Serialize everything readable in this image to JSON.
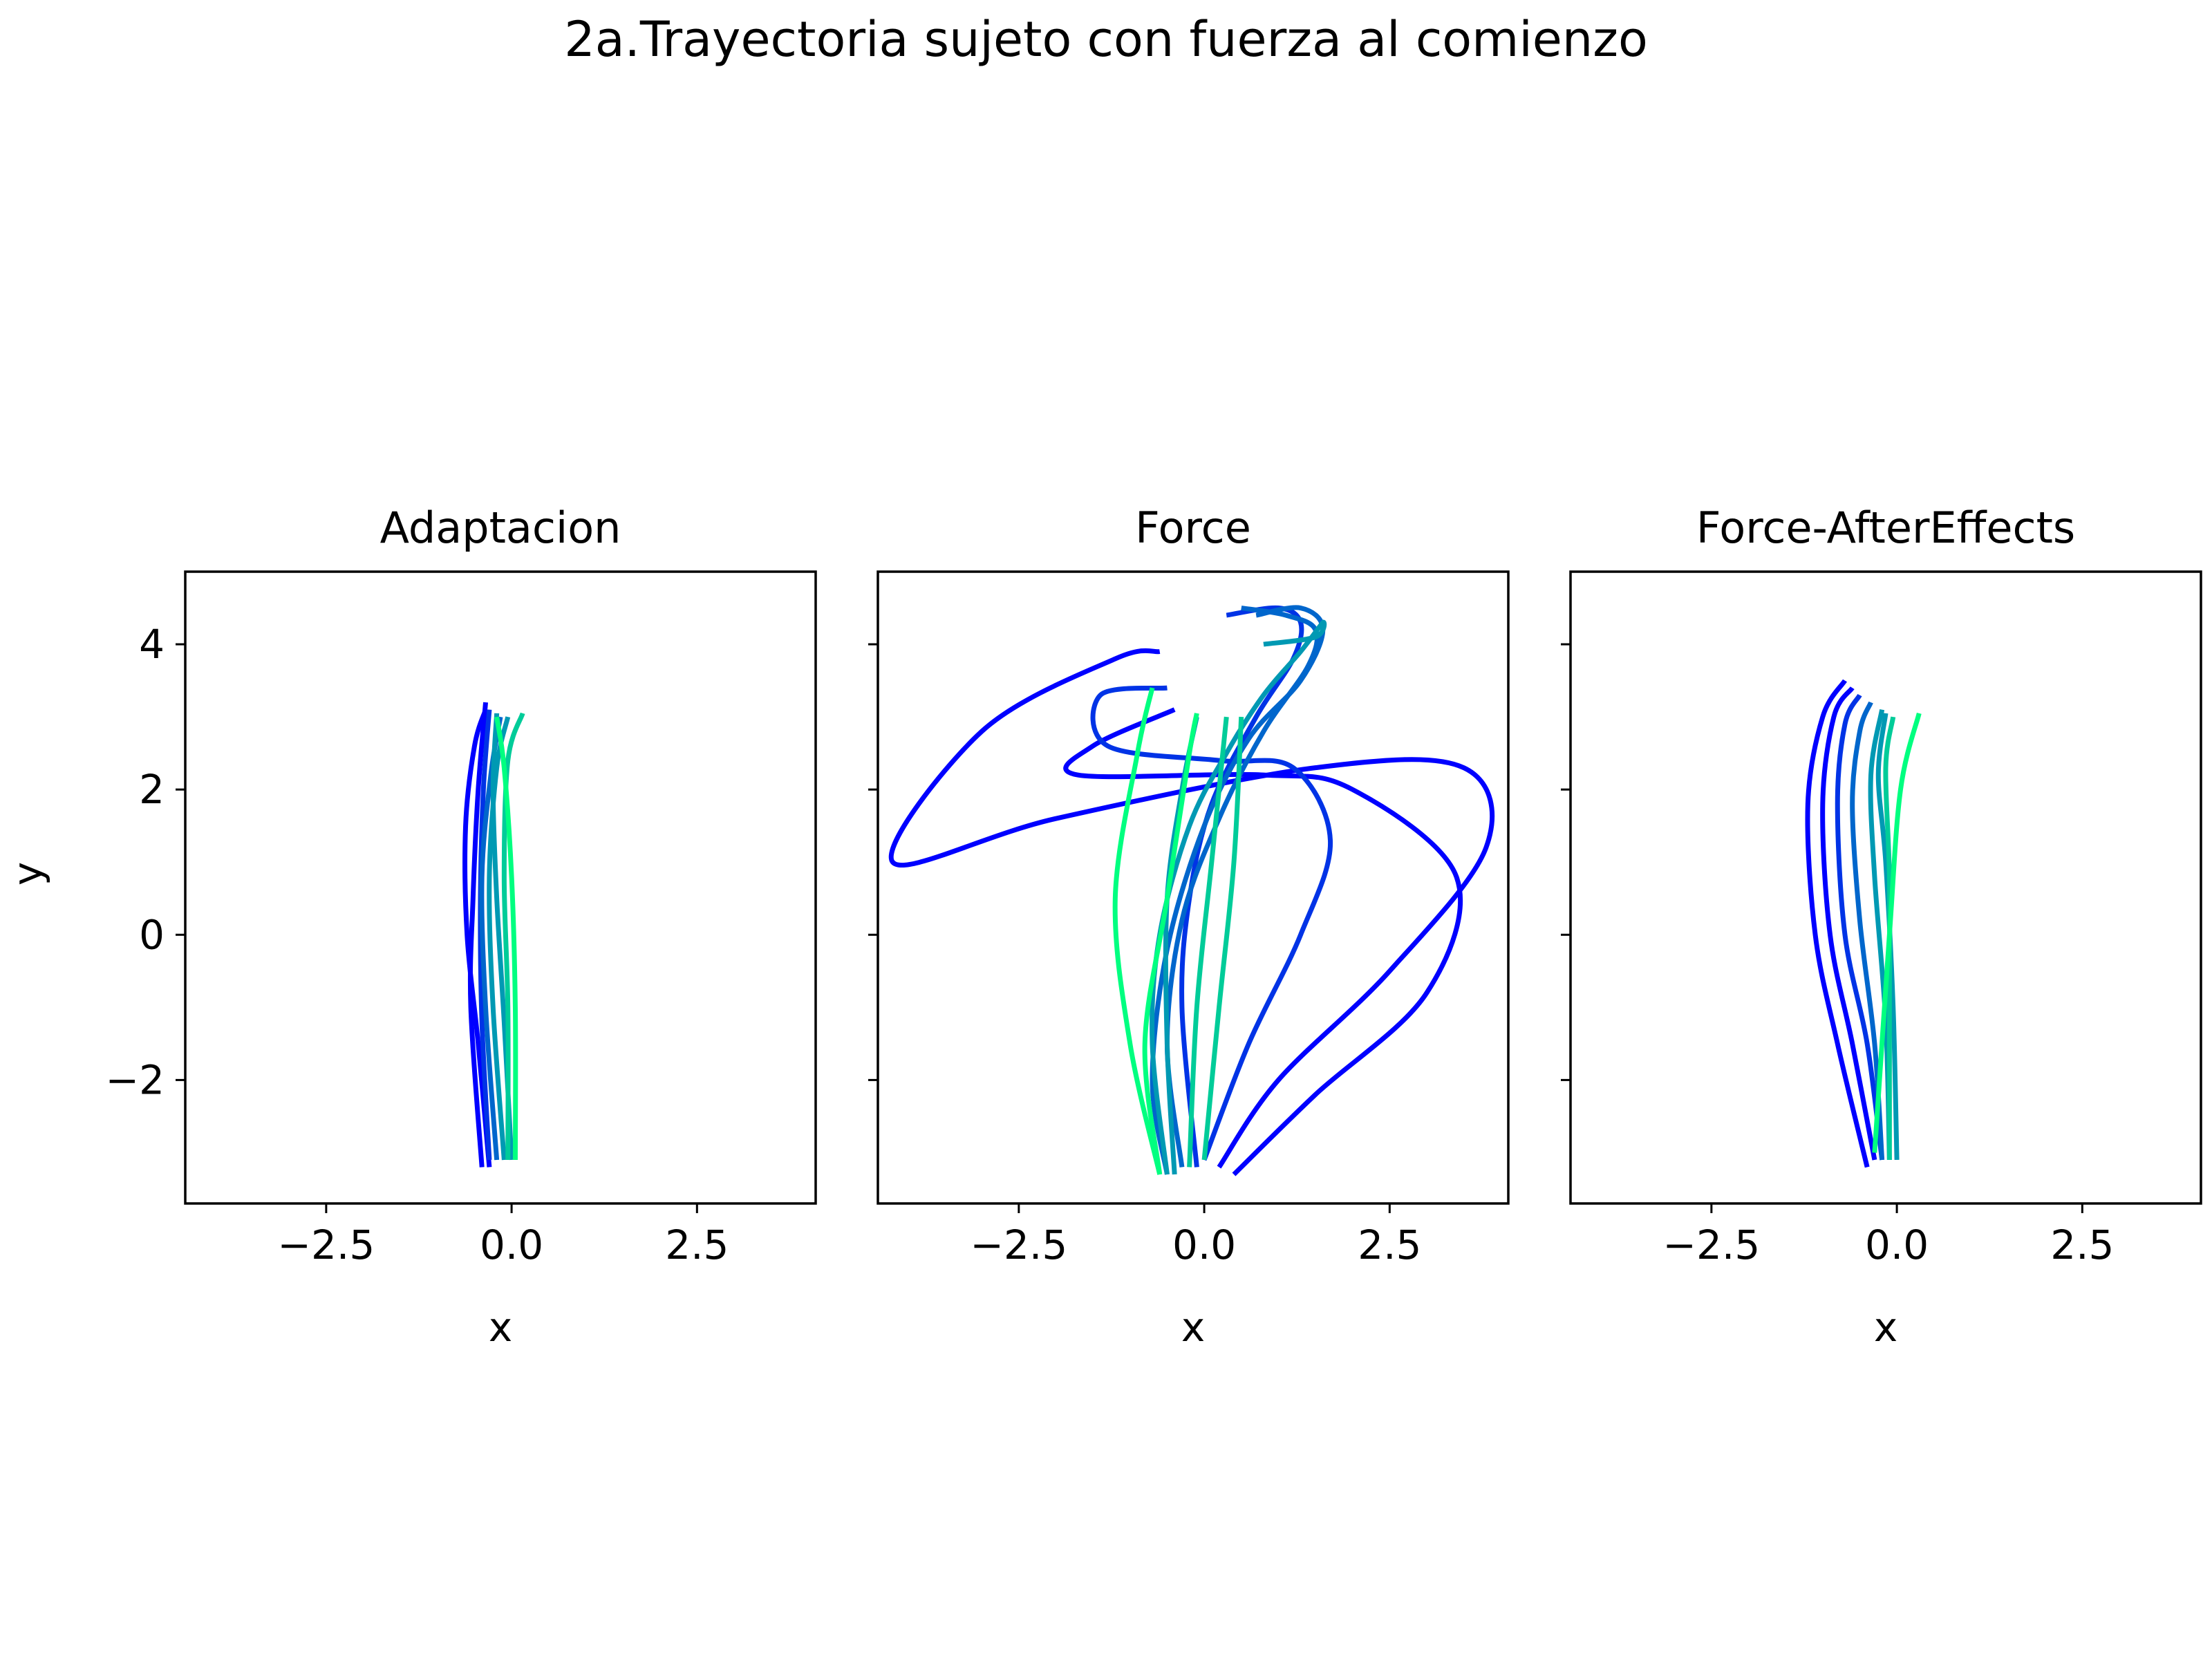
{
  "figure": {
    "suptitle": "2a.Trayectoria sujeto con fuerza al comienzo"
  },
  "chart_data": [
    {
      "type": "line",
      "title": "Adaptacion",
      "xlabel": "x",
      "ylabel": "y",
      "xlim": [
        -4.4,
        4.1
      ],
      "ylim": [
        -3.7,
        5.0
      ],
      "xticks": [
        -2.5,
        0.0,
        2.5
      ],
      "yticks": [
        -2,
        0,
        2,
        4
      ],
      "xtick_labels": [
        "−2.5",
        "0.0",
        "2.5"
      ],
      "ytick_labels": [
        "−2",
        "0",
        "2",
        "4"
      ],
      "grid": false,
      "colormap": "winter (blue to green by trial order)",
      "colors": [
        "#0000ff",
        "#0033e6",
        "#0066cc",
        "#0099b3",
        "#00cc99",
        "#00ff80"
      ],
      "series": [
        {
          "x": [
            -0.3,
            -0.45,
            -0.6,
            -0.62,
            -0.5,
            -0.35
          ],
          "y": [
            -3.2,
            -1.5,
            0.0,
            1.5,
            2.6,
            3.1
          ]
        },
        {
          "x": [
            -0.4,
            -0.55,
            -0.52,
            -0.45,
            -0.35
          ],
          "y": [
            -3.2,
            -1.0,
            0.5,
            2.0,
            3.2
          ]
        },
        {
          "x": [
            -0.3,
            -0.4,
            -0.42,
            -0.38,
            -0.3
          ],
          "y": [
            -3.1,
            -1.2,
            0.5,
            2.0,
            3.1
          ]
        },
        {
          "x": [
            -0.2,
            -0.35,
            -0.4,
            -0.28,
            -0.15
          ],
          "y": [
            -3.1,
            -1.0,
            0.8,
            2.2,
            3.0
          ]
        },
        {
          "x": [
            -0.1,
            -0.25,
            -0.3,
            -0.2,
            -0.05
          ],
          "y": [
            -3.1,
            -1.0,
            0.8,
            2.3,
            3.0
          ]
        },
        {
          "x": [
            0.0,
            -0.1,
            -0.2,
            -0.25,
            -0.2
          ],
          "y": [
            -3.1,
            -1.2,
            0.5,
            2.0,
            3.05
          ]
        },
        {
          "x": [
            -0.05,
            -0.05,
            -0.1,
            -0.05,
            0.15
          ],
          "y": [
            -3.1,
            -1.0,
            0.8,
            2.4,
            3.05
          ]
        },
        {
          "x": [
            0.05,
            0.05,
            0.0,
            -0.1,
            -0.2
          ],
          "y": [
            -3.1,
            -1.0,
            0.8,
            2.3,
            3.0
          ]
        }
      ]
    },
    {
      "type": "line",
      "title": "Force",
      "xlabel": "x",
      "xlim": [
        -4.4,
        4.1
      ],
      "ylim": [
        -3.7,
        5.0
      ],
      "xticks": [
        -2.5,
        0.0,
        2.5
      ],
      "yticks": [
        -2,
        0,
        2,
        4
      ],
      "xtick_labels": [
        "−2.5",
        "0.0",
        "2.5"
      ],
      "ytick_labels": [
        "",
        "",
        "",
        ""
      ],
      "grid": false,
      "colors": [
        "#0000ff",
        "#0033e6",
        "#0066cc",
        "#0099b3",
        "#00cc99",
        "#00ff80"
      ],
      "series": [
        {
          "x": [
            0.2,
            1.0,
            2.5,
            3.8,
            3.5,
            1.5,
            -2.0,
            -4.2,
            -3.0,
            -1.2,
            -0.6
          ],
          "y": [
            -3.2,
            -2.0,
            -0.5,
            1.2,
            2.3,
            2.3,
            1.6,
            1.0,
            2.8,
            3.8,
            3.9
          ]
        },
        {
          "x": [
            0.4,
            1.5,
            3.0,
            3.4,
            2.0,
            0.8,
            -1.7,
            -1.5,
            -0.4
          ],
          "y": [
            -3.3,
            -2.2,
            -0.8,
            0.8,
            2.0,
            2.2,
            2.2,
            2.6,
            3.1
          ]
        },
        {
          "x": [
            0.0,
            0.6,
            1.3,
            1.7,
            1.2,
            0.2,
            -1.3,
            -1.4,
            -0.5
          ],
          "y": [
            -3.1,
            -1.5,
            0.0,
            1.3,
            2.3,
            2.4,
            2.6,
            3.3,
            3.4
          ]
        },
        {
          "x": [
            -0.1,
            -0.3,
            -0.2,
            0.1,
            0.7,
            1.2,
            1.3,
            1.0,
            0.3
          ],
          "y": [
            -3.2,
            -1.0,
            0.5,
            1.8,
            3.0,
            3.8,
            4.3,
            4.5,
            4.4
          ]
        },
        {
          "x": [
            -0.3,
            -0.5,
            -0.3,
            0.2,
            0.8,
            1.4,
            1.5,
            1.1,
            0.5
          ],
          "y": [
            -3.2,
            -1.5,
            0.2,
            1.6,
            2.8,
            3.7,
            4.2,
            4.4,
            4.5
          ]
        },
        {
          "x": [
            -0.5,
            -0.7,
            -0.5,
            0.0,
            0.6,
            1.3,
            1.6,
            1.3,
            0.7
          ],
          "y": [
            -3.3,
            -2.0,
            -0.2,
            1.5,
            2.7,
            3.5,
            4.2,
            4.5,
            4.4
          ]
        },
        {
          "x": [
            -0.5,
            -0.7,
            -0.6,
            -0.2,
            0.3,
            0.8,
            1.3,
            1.6,
            1.5,
            0.8
          ],
          "y": [
            -3.3,
            -1.5,
            0.0,
            1.5,
            2.5,
            3.3,
            3.9,
            4.3,
            4.1,
            4.0
          ]
        },
        {
          "x": [
            -0.4,
            -0.5,
            -0.5,
            -0.3,
            -0.1
          ],
          "y": [
            -3.3,
            -1.5,
            0.5,
            2.0,
            3.0
          ]
        },
        {
          "x": [
            -0.2,
            -0.1,
            0.1,
            0.3
          ],
          "y": [
            -3.2,
            -1.0,
            1.0,
            3.0
          ]
        },
        {
          "x": [
            0.0,
            0.2,
            0.4,
            0.5
          ],
          "y": [
            -3.1,
            -1.0,
            1.0,
            3.0
          ]
        },
        {
          "x": [
            -0.6,
            -0.8,
            -0.5,
            -0.2,
            -0.1
          ],
          "y": [
            -3.3,
            -1.5,
            0.5,
            2.5,
            3.05
          ]
        },
        {
          "x": [
            -0.6,
            -1.0,
            -1.2,
            -0.9,
            -0.7
          ],
          "y": [
            -3.3,
            -1.5,
            0.5,
            2.5,
            3.4
          ]
        }
      ]
    },
    {
      "type": "line",
      "title": "Force-AfterEffects",
      "xlabel": "x",
      "xlim": [
        -4.4,
        4.1
      ],
      "ylim": [
        -3.7,
        5.0
      ],
      "xticks": [
        -2.5,
        0.0,
        2.5
      ],
      "yticks": [
        -2,
        0,
        2,
        4
      ],
      "xtick_labels": [
        "−2.5",
        "0.0",
        "2.5"
      ],
      "ytick_labels": [
        "",
        "",
        "",
        ""
      ],
      "grid": false,
      "colors": [
        "#0000ff",
        "#0033e6",
        "#0066cc",
        "#0099b3",
        "#00cc99",
        "#00ff80"
      ],
      "series": [
        {
          "x": [
            -0.4,
            -0.8,
            -1.1,
            -1.2,
            -1.0,
            -0.7
          ],
          "y": [
            -3.2,
            -1.5,
            0.0,
            1.8,
            3.0,
            3.5
          ]
        },
        {
          "x": [
            -0.3,
            -0.6,
            -0.9,
            -1.0,
            -0.85,
            -0.6
          ],
          "y": [
            -3.1,
            -1.5,
            0.0,
            1.8,
            3.0,
            3.4
          ]
        },
        {
          "x": [
            -0.2,
            -0.4,
            -0.7,
            -0.8,
            -0.7,
            -0.5
          ],
          "y": [
            -3.1,
            -1.5,
            0.0,
            1.8,
            2.9,
            3.3
          ]
        },
        {
          "x": [
            -0.2,
            -0.3,
            -0.5,
            -0.6,
            -0.5,
            -0.35
          ],
          "y": [
            -3.1,
            -1.5,
            0.2,
            1.8,
            2.8,
            3.2
          ]
        },
        {
          "x": [
            -0.1,
            -0.15,
            -0.3,
            -0.35,
            -0.2
          ],
          "y": [
            -3.1,
            -1.2,
            0.8,
            2.2,
            3.1
          ]
        },
        {
          "x": [
            0.0,
            -0.05,
            -0.15,
            -0.25,
            -0.15
          ],
          "y": [
            -3.1,
            -1.0,
            1.0,
            2.2,
            3.05
          ]
        },
        {
          "x": [
            -0.1,
            -0.1,
            -0.1,
            -0.15,
            -0.05
          ],
          "y": [
            -3.1,
            -1.0,
            0.8,
            2.3,
            3.0
          ]
        },
        {
          "x": [
            -0.3,
            -0.1,
            0.05,
            0.3
          ],
          "y": [
            -3.0,
            0.0,
            2.0,
            3.05
          ]
        }
      ]
    }
  ]
}
